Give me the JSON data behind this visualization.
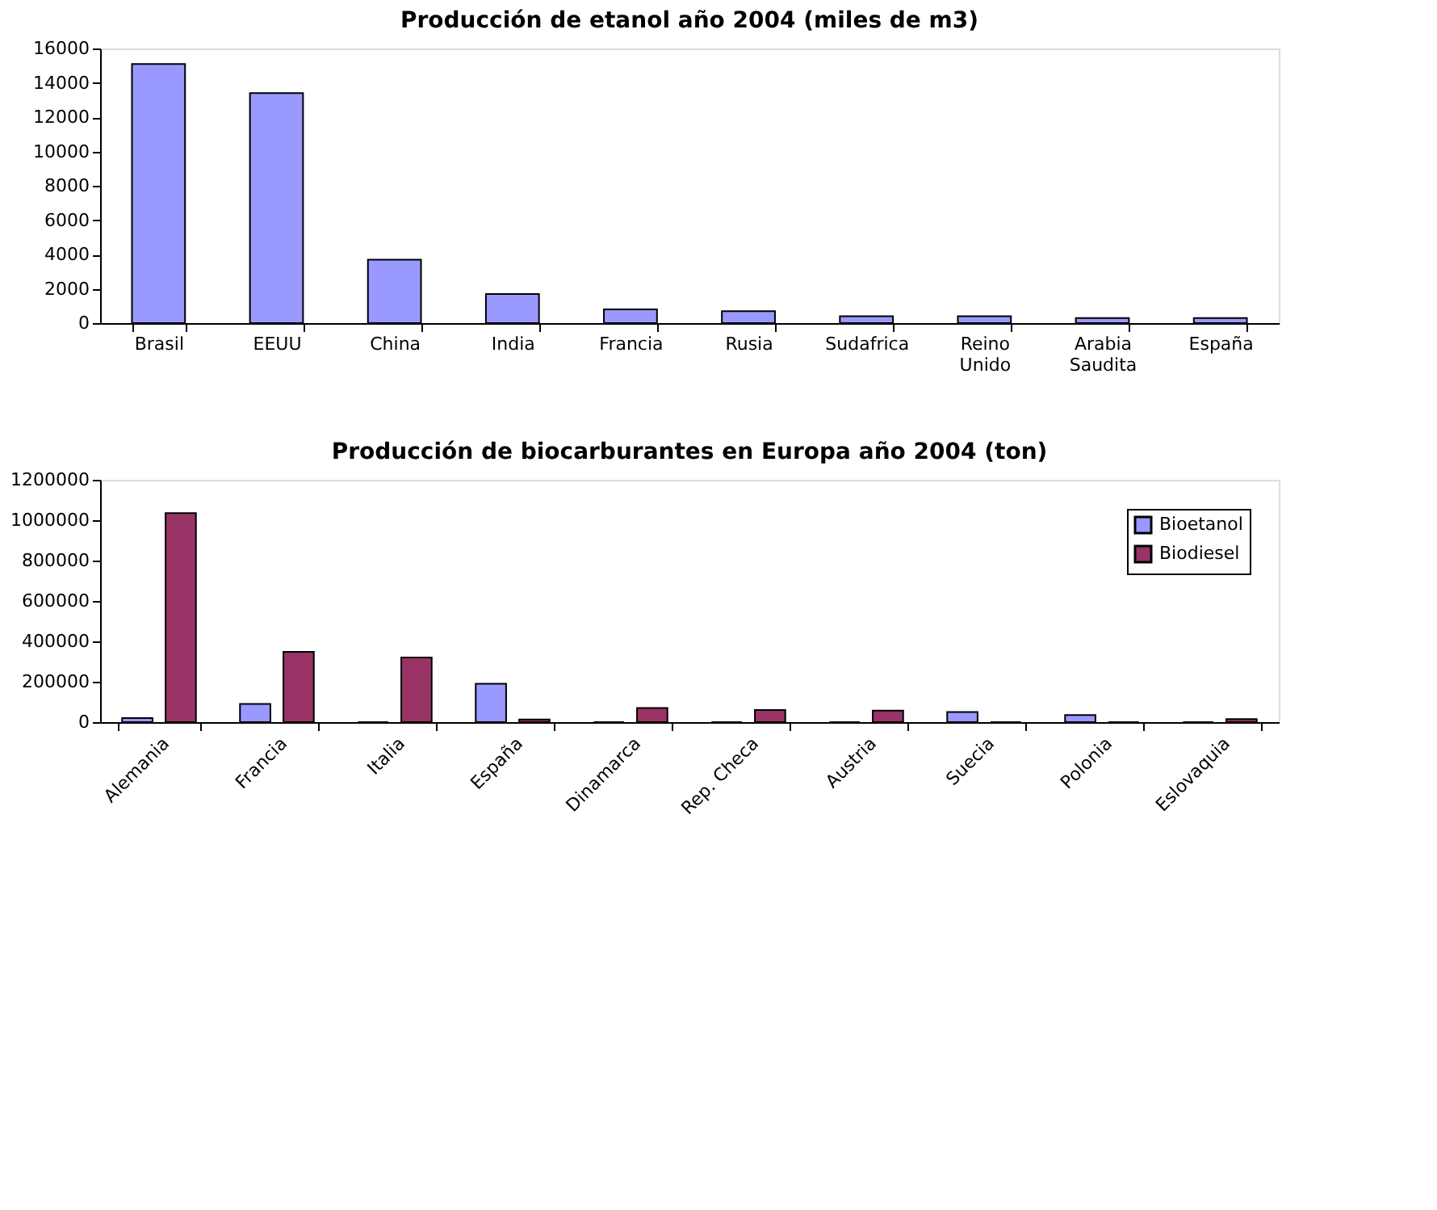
{
  "chart_data": [
    {
      "type": "bar",
      "title": "Producción de etanol año 2004 (miles de m3)",
      "categories": [
        "Brasil",
        "EEUU",
        "China",
        "India",
        "Francia",
        "Rusia",
        "Sudafrica",
        "Reino Unido",
        "Arabia Saudita",
        "España"
      ],
      "values": [
        15100,
        13400,
        3700,
        1700,
        800,
        700,
        400,
        400,
        300,
        300
      ],
      "color": "#9999ff",
      "ylim": [
        0,
        16000
      ],
      "yticks": [
        0,
        2000,
        4000,
        6000,
        8000,
        10000,
        12000,
        14000,
        16000
      ],
      "grid": false,
      "legend": false
    },
    {
      "type": "bar",
      "title": "Producción de biocarburantes en Europa año 2004 (ton)",
      "categories": [
        "Alemania",
        "Francia",
        "Italia",
        "España",
        "Dinamarca",
        "Rep. Checa",
        "Austria",
        "Suecia",
        "Polonia",
        "Eslovaquia"
      ],
      "series": [
        {
          "name": "Bioetanol",
          "color": "#9999ff",
          "values": [
            20000,
            90000,
            0,
            190000,
            0,
            0,
            0,
            50000,
            35000,
            0
          ]
        },
        {
          "name": "Biodiesel",
          "color": "#993366",
          "values": [
            1035000,
            348000,
            320000,
            13000,
            70000,
            60000,
            57000,
            0,
            0,
            15000
          ]
        }
      ],
      "ylim": [
        0,
        1200000
      ],
      "yticks": [
        0,
        200000,
        400000,
        600000,
        800000,
        1000000,
        1200000
      ],
      "grid": false,
      "legend": "top right"
    }
  ]
}
